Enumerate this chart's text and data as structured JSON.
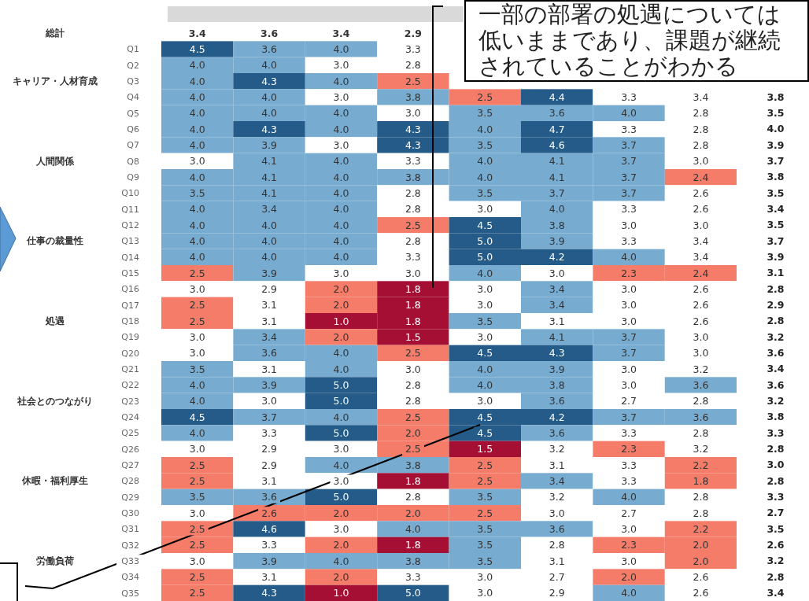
{
  "chart_data": [
    {
      "type": "heatmap",
      "data_labels": true,
      "categories": [
        null,
        null,
        null,
        null,
        null,
        null,
        null,
        null
      ],
      "y_categories": [
        null,
        "Q1",
        "Q2",
        "Q3",
        "Q4",
        "Q5",
        "Q6",
        "Q7",
        "Q8",
        "Q9",
        "Q10",
        "Q11",
        "Q12",
        "Q13",
        "Q14",
        "Q15",
        "Q16",
        "Q17",
        "Q18",
        "Q19",
        "Q20",
        "Q21",
        "Q22",
        "Q23",
        "Q24",
        "Q25",
        "Q26",
        "Q27",
        "Q28",
        "Q29",
        "Q30",
        "Q31",
        "Q32",
        "Q33",
        "Q34",
        "Q35"
      ],
      "y2_categories": [
        "総計",
        null,
        null,
        "キャリア・人材育成",
        null,
        null,
        null,
        null,
        "人間関係",
        null,
        null,
        null,
        null,
        "仕事の裁量性",
        null,
        null,
        null,
        null,
        "処遇",
        null,
        null,
        null,
        null,
        "社会とのつながり",
        null,
        null,
        null,
        null,
        "休暇・福利厚生",
        null,
        null,
        null,
        null,
        "労働負荷",
        null,
        null
      ],
      "cells": [
        [
          3.4,
          3.6,
          3.4,
          2.9,
          null,
          null,
          null,
          null
        ],
        [
          4.5,
          3.6,
          4.0,
          3.3,
          null,
          null,
          null,
          null
        ],
        [
          4.0,
          4.0,
          3.0,
          2.8,
          null,
          null,
          null,
          null
        ],
        [
          4.0,
          4.3,
          4.0,
          2.5,
          null,
          null,
          null,
          null
        ],
        [
          4.0,
          4.0,
          3.0,
          3.8,
          2.5,
          4.4,
          3.3,
          3.4
        ],
        [
          4.0,
          4.0,
          4.0,
          3.0,
          3.5,
          3.6,
          4.0,
          2.8
        ],
        [
          4.0,
          4.3,
          4.0,
          4.3,
          4.0,
          4.7,
          3.3,
          2.8
        ],
        [
          4.0,
          3.9,
          3.0,
          4.3,
          3.5,
          4.6,
          3.7,
          2.8
        ],
        [
          3.0,
          4.1,
          4.0,
          3.3,
          4.0,
          4.1,
          3.7,
          3.0
        ],
        [
          4.0,
          4.1,
          4.0,
          3.8,
          4.0,
          4.1,
          3.7,
          2.4
        ],
        [
          3.5,
          4.1,
          4.0,
          2.8,
          3.5,
          3.7,
          3.7,
          2.6
        ],
        [
          4.0,
          3.4,
          4.0,
          2.8,
          3.0,
          4.0,
          3.3,
          2.6
        ],
        [
          4.0,
          4.0,
          4.0,
          2.5,
          4.5,
          3.8,
          3.0,
          3.0
        ],
        [
          4.0,
          4.0,
          4.0,
          2.8,
          5.0,
          3.9,
          3.3,
          3.4
        ],
        [
          4.0,
          4.0,
          4.0,
          3.3,
          5.0,
          4.2,
          4.0,
          3.4
        ],
        [
          2.5,
          3.9,
          3.0,
          3.0,
          4.0,
          3.0,
          2.3,
          2.4
        ],
        [
          3.0,
          2.9,
          2.0,
          1.8,
          3.0,
          3.4,
          3.0,
          2.6
        ],
        [
          2.5,
          3.1,
          2.0,
          1.8,
          3.0,
          3.4,
          3.0,
          2.6
        ],
        [
          2.5,
          3.1,
          1.0,
          1.8,
          3.5,
          3.1,
          3.0,
          2.6
        ],
        [
          3.0,
          3.4,
          2.0,
          1.5,
          3.0,
          4.1,
          3.7,
          3.0
        ],
        [
          3.0,
          3.6,
          4.0,
          2.5,
          4.5,
          4.3,
          3.7,
          3.0
        ],
        [
          3.5,
          3.1,
          4.0,
          3.0,
          4.0,
          3.9,
          3.0,
          3.2
        ],
        [
          4.0,
          3.9,
          5.0,
          2.8,
          4.0,
          3.8,
          3.0,
          3.6
        ],
        [
          4.0,
          3.0,
          5.0,
          2.8,
          3.0,
          3.6,
          2.7,
          2.8
        ],
        [
          4.5,
          3.7,
          4.0,
          2.5,
          4.5,
          4.2,
          3.7,
          3.6
        ],
        [
          4.0,
          3.3,
          5.0,
          2.0,
          4.5,
          3.6,
          3.3,
          2.8
        ],
        [
          3.0,
          2.9,
          3.0,
          2.5,
          1.5,
          3.2,
          2.3,
          3.2
        ],
        [
          2.5,
          2.9,
          4.0,
          3.8,
          2.5,
          3.1,
          3.3,
          2.2
        ],
        [
          2.5,
          3.1,
          3.0,
          1.8,
          2.5,
          3.4,
          3.3,
          1.8
        ],
        [
          3.5,
          3.6,
          5.0,
          2.8,
          3.5,
          3.2,
          4.0,
          2.8
        ],
        [
          3.0,
          2.6,
          2.0,
          2.0,
          2.5,
          3.0,
          2.7,
          2.8
        ],
        [
          2.5,
          4.6,
          3.0,
          4.0,
          3.5,
          3.6,
          3.0,
          2.2
        ],
        [
          2.5,
          3.3,
          2.0,
          1.8,
          3.5,
          2.8,
          2.3,
          2.0
        ],
        [
          3.0,
          3.9,
          4.0,
          3.8,
          3.5,
          3.1,
          3.0,
          2.0
        ],
        [
          2.5,
          3.1,
          2.0,
          3.3,
          3.0,
          2.7,
          2.0,
          2.6
        ],
        [
          2.5,
          4.3,
          1.0,
          5.0,
          3.0,
          2.9,
          4.0,
          2.6
        ]
      ],
      "cell_labels": [
        [
          "3.4",
          "3.6",
          "3.4",
          "2.9",
          null,
          null,
          null,
          null
        ],
        [
          "4.5",
          "3.6",
          "4.0",
          "3.3",
          null,
          null,
          null,
          null
        ],
        [
          "4.0",
          "4.0",
          "3.0",
          "2.8",
          null,
          null,
          null,
          null
        ],
        [
          "4.0",
          "4.3",
          "4.0",
          "2.5",
          null,
          null,
          null,
          null
        ],
        [
          "4.0",
          "4.0",
          "3.0",
          "3.8",
          "2.5",
          "4.4",
          "3.3",
          "3.4"
        ],
        [
          "4.0",
          "4.0",
          "4.0",
          "3.0",
          "3.5",
          "3.6",
          "4.0",
          "2.8"
        ],
        [
          "4.0",
          "4.3",
          "4.0",
          "4.3",
          "4.0",
          "4.7",
          "3.3",
          "2.8"
        ],
        [
          "4.0",
          "3.9",
          "3.0",
          "4.3",
          "3.5",
          "4.6",
          "3.7",
          "2.8"
        ],
        [
          "3.0",
          "4.1",
          "4.0",
          "3.3",
          "4.0",
          "4.1",
          "3.7",
          "3.0"
        ],
        [
          "4.0",
          "4.1",
          "4.0",
          "3.8",
          "4.0",
          "4.1",
          "3.7",
          "2.4"
        ],
        [
          "3.5",
          "4.1",
          "4.0",
          "2.8",
          "3.5",
          "3.7",
          "3.7",
          "2.6"
        ],
        [
          "4.0",
          "3.4",
          "4.0",
          "2.8",
          "3.0",
          "4.0",
          "3.3",
          "2.6"
        ],
        [
          "4.0",
          "4.0",
          "4.0",
          "2.5",
          "4.5",
          "3.8",
          "3.0",
          "3.0"
        ],
        [
          "4.0",
          "4.0",
          "4.0",
          "2.8",
          "5.0",
          "3.9",
          "3.3",
          "3.4"
        ],
        [
          "4.0",
          "4.0",
          "4.0",
          "3.3",
          "5.0",
          "4.2",
          "4.0",
          "3.4"
        ],
        [
          "2.5",
          "3.9",
          "3.0",
          "3.0",
          "4.0",
          "3.0",
          "2.3",
          "2.4"
        ],
        [
          "3.0",
          "2.9",
          "2.0",
          "1.8",
          "3.0",
          "3.4",
          "3.0",
          "2.6"
        ],
        [
          "2.5",
          "3.1",
          "2.0",
          "1.8",
          "3.0",
          "3.4",
          "3.0",
          "2.6"
        ],
        [
          "2.5",
          "3.1",
          "1.0",
          "1.8",
          "3.5",
          "3.1",
          "3.0",
          "2.6"
        ],
        [
          "3.0",
          "3.4",
          "2.0",
          "1.5",
          "3.0",
          "4.1",
          "3.7",
          "3.0"
        ],
        [
          "3.0",
          "3.6",
          "4.0",
          "2.5",
          "4.5",
          "4.3",
          "3.7",
          "3.0"
        ],
        [
          "3.5",
          "3.1",
          "4.0",
          "3.0",
          "4.0",
          "3.9",
          "3.0",
          "3.2"
        ],
        [
          "4.0",
          "3.9",
          "5.0",
          "2.8",
          "4.0",
          "3.8",
          "3.0",
          "3.6"
        ],
        [
          "4.0",
          "3.0",
          "5.0",
          "2.8",
          "3.0",
          "3.6",
          "2.7",
          "2.8"
        ],
        [
          "4.5",
          "3.7",
          "4.0",
          "2.5",
          "4.5",
          "4.2",
          "3.7",
          "3.6"
        ],
        [
          "4.0",
          "3.3",
          "5.0",
          "2.0",
          "4.5",
          "3.6",
          "3.3",
          "2.8"
        ],
        [
          "3.0",
          "2.9",
          "3.0",
          "2.5",
          "1.5",
          "3.2",
          "2.3",
          "3.2"
        ],
        [
          "2.5",
          "2.9",
          "4.0",
          "3.8",
          "2.5",
          "3.1",
          "3.3",
          "2.2"
        ],
        [
          "2.5",
          "3.1",
          "3.0",
          "1.8",
          "2.5",
          "3.4",
          "3.3",
          "1.8"
        ],
        [
          "3.5",
          "3.6",
          "5.0",
          "2.8",
          "3.5",
          "3.2",
          "4.0",
          "2.8"
        ],
        [
          "3.0",
          "2.6",
          "2.0",
          "2.0",
          "2.5",
          "3.0",
          "2.7",
          "2.8"
        ],
        [
          "2.5",
          "4.6",
          "3.0",
          "4.0",
          "3.5",
          "3.6",
          "3.0",
          "2.2"
        ],
        [
          "2.5",
          "3.3",
          "2.0",
          "1.8",
          "3.5",
          "2.8",
          "2.3",
          "2.0"
        ],
        [
          "3.0",
          "3.9",
          "4.0",
          "3.8",
          "3.5",
          "3.1",
          "3.0",
          "2.0"
        ],
        [
          "2.5",
          "3.1",
          "2.0",
          "3.3",
          "3.0",
          "2.7",
          "2.0",
          "2.6"
        ],
        [
          "2.5",
          "4.3",
          "1.0",
          "5.0",
          "3.0",
          "2.9",
          "4.0",
          "2.6"
        ]
      ],
      "colors": [
        [
          "#ffffff",
          "#ffffff",
          "#ffffff",
          "#ffffff",
          null,
          null,
          null,
          null
        ],
        [
          "#245b88",
          "#77abd0",
          "#77abd0",
          "#ffffff",
          null,
          null,
          null,
          null
        ],
        [
          "#77abd0",
          "#77abd0",
          "#ffffff",
          "#ffffff",
          null,
          null,
          null,
          null
        ],
        [
          "#77abd0",
          "#245b88",
          "#77abd0",
          "#f47c69",
          null,
          null,
          null,
          null
        ],
        [
          "#77abd0",
          "#77abd0",
          "#ffffff",
          "#77abd0",
          "#f47c69",
          "#245b88",
          "#ffffff",
          "#ffffff"
        ],
        [
          "#77abd0",
          "#77abd0",
          "#77abd0",
          "#ffffff",
          "#77abd0",
          "#77abd0",
          "#77abd0",
          "#ffffff"
        ],
        [
          "#77abd0",
          "#245b88",
          "#77abd0",
          "#245b88",
          "#77abd0",
          "#245b88",
          "#ffffff",
          "#ffffff"
        ],
        [
          "#77abd0",
          "#77abd0",
          "#ffffff",
          "#245b88",
          "#77abd0",
          "#245b88",
          "#77abd0",
          "#ffffff"
        ],
        [
          "#ffffff",
          "#77abd0",
          "#77abd0",
          "#ffffff",
          "#77abd0",
          "#77abd0",
          "#77abd0",
          "#ffffff"
        ],
        [
          "#77abd0",
          "#77abd0",
          "#77abd0",
          "#77abd0",
          "#77abd0",
          "#77abd0",
          "#77abd0",
          "#f47c69"
        ],
        [
          "#77abd0",
          "#77abd0",
          "#77abd0",
          "#ffffff",
          "#77abd0",
          "#77abd0",
          "#77abd0",
          "#ffffff"
        ],
        [
          "#77abd0",
          "#77abd0",
          "#77abd0",
          "#ffffff",
          "#ffffff",
          "#77abd0",
          "#ffffff",
          "#ffffff"
        ],
        [
          "#77abd0",
          "#77abd0",
          "#77abd0",
          "#f47c69",
          "#245b88",
          "#77abd0",
          "#ffffff",
          "#ffffff"
        ],
        [
          "#77abd0",
          "#77abd0",
          "#77abd0",
          "#ffffff",
          "#245b88",
          "#77abd0",
          "#ffffff",
          "#ffffff"
        ],
        [
          "#77abd0",
          "#77abd0",
          "#77abd0",
          "#ffffff",
          "#245b88",
          "#245b88",
          "#77abd0",
          "#ffffff"
        ],
        [
          "#f47c69",
          "#77abd0",
          "#ffffff",
          "#ffffff",
          "#77abd0",
          "#ffffff",
          "#f47c69",
          "#f47c69"
        ],
        [
          "#ffffff",
          "#ffffff",
          "#f47c69",
          "#a50f34",
          "#ffffff",
          "#77abd0",
          "#ffffff",
          "#ffffff"
        ],
        [
          "#f47c69",
          "#ffffff",
          "#f47c69",
          "#a50f34",
          "#ffffff",
          "#77abd0",
          "#ffffff",
          "#ffffff"
        ],
        [
          "#f47c69",
          "#ffffff",
          "#a50f34",
          "#a50f34",
          "#77abd0",
          "#ffffff",
          "#ffffff",
          "#ffffff"
        ],
        [
          "#ffffff",
          "#77abd0",
          "#f47c69",
          "#a50f34",
          "#ffffff",
          "#77abd0",
          "#77abd0",
          "#ffffff"
        ],
        [
          "#ffffff",
          "#77abd0",
          "#77abd0",
          "#f47c69",
          "#245b88",
          "#245b88",
          "#77abd0",
          "#ffffff"
        ],
        [
          "#77abd0",
          "#ffffff",
          "#77abd0",
          "#ffffff",
          "#77abd0",
          "#77abd0",
          "#ffffff",
          "#ffffff"
        ],
        [
          "#77abd0",
          "#77abd0",
          "#245b88",
          "#ffffff",
          "#77abd0",
          "#77abd0",
          "#ffffff",
          "#77abd0"
        ],
        [
          "#77abd0",
          "#ffffff",
          "#245b88",
          "#ffffff",
          "#ffffff",
          "#77abd0",
          "#ffffff",
          "#ffffff"
        ],
        [
          "#245b88",
          "#77abd0",
          "#77abd0",
          "#f47c69",
          "#245b88",
          "#245b88",
          "#77abd0",
          "#77abd0"
        ],
        [
          "#77abd0",
          "#ffffff",
          "#245b88",
          "#f47c69",
          "#245b88",
          "#77abd0",
          "#ffffff",
          "#ffffff"
        ],
        [
          "#ffffff",
          "#ffffff",
          "#ffffff",
          "#f47c69",
          "#a50f34",
          "#ffffff",
          "#f47c69",
          "#ffffff"
        ],
        [
          "#f47c69",
          "#ffffff",
          "#77abd0",
          "#77abd0",
          "#f47c69",
          "#ffffff",
          "#ffffff",
          "#f47c69"
        ],
        [
          "#f47c69",
          "#ffffff",
          "#ffffff",
          "#a50f34",
          "#f47c69",
          "#77abd0",
          "#ffffff",
          "#f47c69"
        ],
        [
          "#77abd0",
          "#77abd0",
          "#245b88",
          "#ffffff",
          "#77abd0",
          "#ffffff",
          "#77abd0",
          "#ffffff"
        ],
        [
          "#ffffff",
          "#f47c69",
          "#f47c69",
          "#f47c69",
          "#f47c69",
          "#ffffff",
          "#ffffff",
          "#ffffff"
        ],
        [
          "#f47c69",
          "#245b88",
          "#ffffff",
          "#77abd0",
          "#77abd0",
          "#77abd0",
          "#ffffff",
          "#f47c69"
        ],
        [
          "#f47c69",
          "#ffffff",
          "#f47c69",
          "#a50f34",
          "#77abd0",
          "#ffffff",
          "#f47c69",
          "#f47c69"
        ],
        [
          "#ffffff",
          "#77abd0",
          "#77abd0",
          "#77abd0",
          "#77abd0",
          "#ffffff",
          "#ffffff",
          "#f47c69"
        ],
        [
          "#f47c69",
          "#ffffff",
          "#f47c69",
          "#ffffff",
          "#ffffff",
          "#ffffff",
          "#f47c69",
          "#ffffff"
        ],
        [
          "#f47c69",
          "#245b88",
          "#a50f34",
          "#245b88",
          "#ffffff",
          "#ffffff",
          "#77abd0",
          "#ffffff"
        ]
      ],
      "annotations": [
        "一部の部署の処遇については低いままであり、課題が継続されていることがわかる"
      ]
    },
    {
      "type": "other",
      "values": [
        3.8,
        3.5,
        4.0,
        3.9,
        3.7,
        3.8,
        3.5,
        3.4,
        3.5,
        3.7,
        3.9,
        3.1,
        2.8,
        2.9,
        2.8,
        3.2,
        3.6,
        3.4,
        3.6,
        3.2,
        3.8,
        3.3,
        2.8,
        3.0,
        2.8,
        3.3,
        2.7,
        3.5,
        2.6,
        3.2,
        2.8,
        3.4
      ],
      "value_labels": [
        "3.8",
        "3.5",
        "4.0",
        "3.9",
        "3.7",
        "3.8",
        "3.5",
        "3.4",
        "3.5",
        "3.7",
        "3.9",
        "3.1",
        "2.8",
        "2.9",
        "2.8",
        "3.2",
        "3.6",
        "3.4",
        "3.6",
        "3.2",
        "3.8",
        "3.3",
        "2.8",
        "3.0",
        "2.8",
        "3.3",
        "2.7",
        "3.5",
        "2.6",
        "3.2",
        "2.8",
        "3.4"
      ]
    }
  ]
}
